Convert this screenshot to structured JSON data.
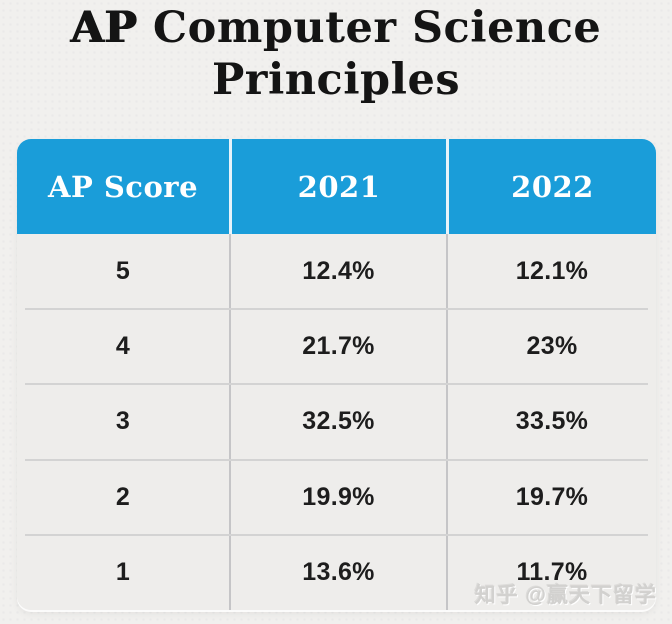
{
  "title": {
    "line1_strong": "AP",
    "line1_rest": " Computer Science",
    "line2": "Principles"
  },
  "chart_data": {
    "type": "table",
    "title": "AP Computer Science Principles",
    "columns": [
      "AP Score",
      "2021",
      "2022"
    ],
    "rows": [
      [
        "5",
        "12.4%",
        "12.1%"
      ],
      [
        "4",
        "21.7%",
        "23%"
      ],
      [
        "3",
        "32.5%",
        "33.5%"
      ],
      [
        "2",
        "19.9%",
        "19.7%"
      ],
      [
        "1",
        "13.6%",
        "11.7%"
      ]
    ]
  },
  "watermark": {
    "text": "知乎 @赢天下留学"
  },
  "colors": {
    "header_blue": "#1a9dd9",
    "header_text": "#ffffff",
    "page_bg": "#f1f0ee",
    "cell_bg": "#eeedeb",
    "divider_vertical": "#c5c5c7",
    "divider_horizontal": "#d3d3d3",
    "title_text": "#141414",
    "body_text": "#1d1d1d",
    "watermark_gray": "#d2d1cf"
  }
}
